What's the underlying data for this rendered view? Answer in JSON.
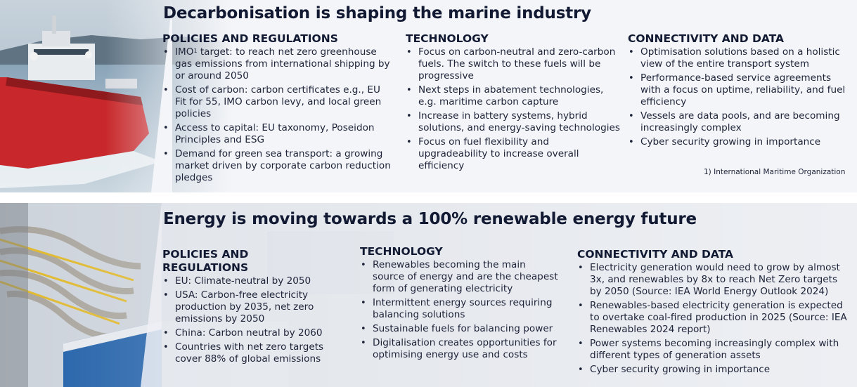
{
  "marine": {
    "title": "Decarbonisation is shaping the marine industry",
    "columns": [
      {
        "heading": "POLICIES AND REGULATIONS",
        "items": [
          {
            "pre": "IMO",
            "sup": "1",
            "post": " target: to reach net zero greenhouse gas emissions from international shipping by or around 2050"
          },
          {
            "text": "Cost of carbon: carbon certificates e.g., EU Fit for 55, IMO carbon levy, and local green policies"
          },
          {
            "text": "Access to capital: EU taxonomy, Poseidon Principles and ESG"
          },
          {
            "text": "Demand for green sea transport: a growing market driven by corporate carbon reduction pledges"
          }
        ]
      },
      {
        "heading": "TECHNOLOGY",
        "items": [
          {
            "text": "Focus on carbon-neutral and zero-carbon fuels. The switch to these fuels will be progressive"
          },
          {
            "text": "Next steps in abatement technologies, e.g. maritime carbon capture"
          },
          {
            "text": "Increase in battery systems, hybrid solutions, and energy-saving technologies"
          },
          {
            "text": "Focus on fuel flexibility and upgradeability to increase overall efficiency"
          }
        ]
      },
      {
        "heading": "CONNECTIVITY AND DATA",
        "items": [
          {
            "text": "Optimisation solutions based on a holistic view of the entire transport system"
          },
          {
            "text": "Performance-based service agreements with a focus on uptime, reliability, and fuel efficiency"
          },
          {
            "text": "Vessels are data pools, and are becoming increasingly complex"
          },
          {
            "text": "Cyber security growing in importance"
          }
        ]
      }
    ],
    "footnote": "1) International Maritime Organization"
  },
  "energy": {
    "title": "Energy is moving towards a 100% renewable energy future",
    "columns": [
      {
        "heading": "POLICIES AND REGULATIONS",
        "items": [
          {
            "text": "EU: Climate-neutral by 2050"
          },
          {
            "text": "USA: Carbon-free electricity production by 2035, net zero emissions by 2050"
          },
          {
            "text": "China: Carbon neutral by 2060"
          },
          {
            "text": "Countries with net zero targets cover 88% of global emissions"
          }
        ]
      },
      {
        "heading": "TECHNOLOGY",
        "items": [
          {
            "text": "Renewables becoming the main source of energy and are the cheapest form of generating electricity"
          },
          {
            "text": "Intermittent energy sources requiring balancing solutions"
          },
          {
            "text": "Sustainable fuels for balancing power"
          },
          {
            "text": "Digitalisation creates opportunities for optimising energy use and costs"
          }
        ]
      },
      {
        "heading": "CONNECTIVITY AND DATA",
        "items": [
          {
            "text": "Electricity generation would need to grow by almost 3x, and renewables by 8x to reach Net Zero targets by 2050 (Source: IEA World Energy Outlook 2024)"
          },
          {
            "text": "Renewables-based electricity generation is expected to overtake coal-fired production in 2025 (Source: IEA Renewables 2024 report)"
          },
          {
            "text": "Power systems becoming increasingly complex with different types of generation assets"
          },
          {
            "text": "Cyber security growing in importance"
          }
        ]
      }
    ]
  },
  "colors": {
    "heading": "#121a33",
    "body_text": "#1d2338",
    "ship_hull": "#c8282b",
    "sea": "#6f8fa8"
  }
}
